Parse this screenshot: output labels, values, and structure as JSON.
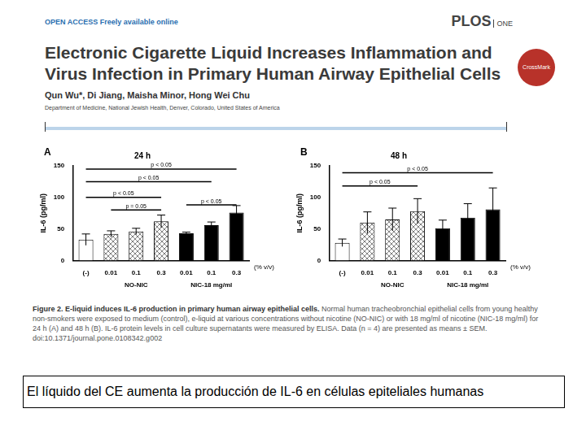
{
  "header": {
    "journal_note": "OPEN ACCESS Freely available online",
    "journal": "PLOS",
    "journal_sub": "ONE",
    "crossmark": "CrossMark",
    "title": "Electronic Cigarette Liquid Increases Inflammation and Virus Infection in Primary Human Airway Epithelial Cells",
    "authors": "Qun Wu*, Di Jiang, Maisha Minor, Hong Wei Chu",
    "affiliation": "Department of Medicine, National Jewish Health, Denver, Colorado, United States of America"
  },
  "chart_data": [
    {
      "type": "bar",
      "panel": "A",
      "title": "24 h",
      "y_label": "IL-6 (pg/ml)",
      "categories": [
        "(-)",
        "0.01",
        "0.1",
        "0.3",
        "0.01",
        "0.1",
        "0.3"
      ],
      "values": [
        33,
        42,
        46,
        62,
        43,
        56,
        76
      ],
      "errors": [
        9,
        5,
        5,
        10,
        2,
        5,
        11
      ],
      "colors": [
        "#ffffff",
        "#808080",
        "#808080",
        "#808080",
        "#000000",
        "#000000",
        "#000000"
      ],
      "ylim": [
        0,
        150
      ],
      "yticks": [
        0,
        50,
        100,
        150
      ],
      "grid": false,
      "x_unit": "(% v/v)",
      "groups": [
        {
          "label": "NO-NIC",
          "from": 1,
          "to": 3
        },
        {
          "label": "NIC-18 mg/ml",
          "from": 4,
          "to": 6
        }
      ],
      "brackets": [
        {
          "from": 0,
          "to": 6,
          "y": 145,
          "label": "p < 0.05"
        },
        {
          "from": 0,
          "to": 5,
          "y": 125,
          "label": "p < 0.05"
        },
        {
          "from": 0,
          "to": 3,
          "y": 100,
          "label": "p < 0.05"
        },
        {
          "from": 1,
          "to": 3,
          "y": 80,
          "label": "p = 0.05"
        },
        {
          "from": 4,
          "to": 6,
          "y": 88,
          "label": "p < 0.05"
        }
      ]
    },
    {
      "type": "bar",
      "panel": "B",
      "title": "48 h",
      "y_label": "IL-6 (pg/ml)",
      "categories": [
        "(-)",
        "0.01",
        "0.1",
        "0.3",
        "0.01",
        "0.1",
        "0.3"
      ],
      "values": [
        28,
        60,
        65,
        78,
        51,
        68,
        81
      ],
      "errors": [
        6,
        17,
        18,
        20,
        13,
        22,
        34
      ],
      "colors": [
        "#ffffff",
        "#808080",
        "#808080",
        "#808080",
        "#000000",
        "#000000",
        "#000000"
      ],
      "ylim": [
        0,
        150
      ],
      "yticks": [
        0,
        50,
        100,
        150
      ],
      "grid": false,
      "x_unit": "(% v/v)",
      "groups": [
        {
          "label": "NO-NIC",
          "from": 1,
          "to": 3
        },
        {
          "label": "NIC-18 mg/ml",
          "from": 4,
          "to": 6
        }
      ],
      "brackets": [
        {
          "from": 0,
          "to": 6,
          "y": 139,
          "label": "p < 0.05"
        },
        {
          "from": 0,
          "to": 3,
          "y": 118,
          "label": "p < 0.05"
        }
      ]
    }
  ],
  "caption": {
    "label": "Figure 2. E-liquid induces IL-6 production in primary human airway epithelial cells.",
    "text": "Normal human tracheobronchial epithelial cells from young healthy non-smokers were exposed to medium (control), e-liquid at various concentrations without nicotine (NO-NIC) or with 18 mg/ml of nicotine (NIC-18 mg/ml) for 24 h (A) and 48 h (B). IL-6 protein levels in cell culture supernatants were measured by ELISA. Data (n = 4) are presented as means ± SEM.",
    "doi": "doi:10.1371/journal.pone.0108342.g002"
  },
  "slide_caption": "El líquido del CE aumenta la producción de IL-6 en células epiteliales humanas"
}
